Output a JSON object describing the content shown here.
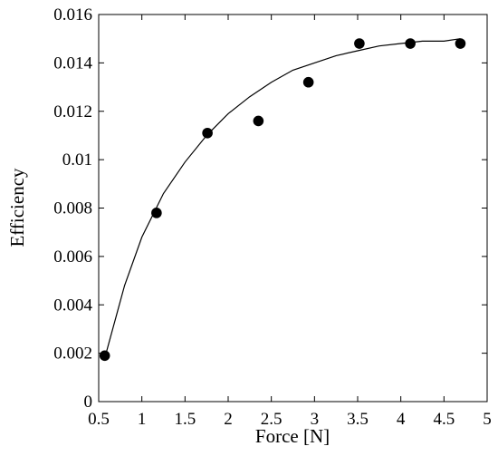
{
  "chart_data": {
    "type": "scatter",
    "title": "",
    "xlabel": "Force [N]",
    "ylabel": "Efficiency",
    "xlim": [
      0.5,
      5
    ],
    "ylim": [
      0,
      0.016
    ],
    "xticks": [
      "0.5",
      "1",
      "1.5",
      "2",
      "2.5",
      "3",
      "3.5",
      "4",
      "4.5",
      "5"
    ],
    "yticks": [
      "0",
      "0.002",
      "0.004",
      "0.006",
      "0.008",
      "0.01",
      "0.012",
      "0.014",
      "0.016"
    ],
    "grid": false,
    "series": [
      {
        "type": "scatter",
        "x": [
          0.57,
          1.17,
          1.76,
          2.35,
          2.93,
          3.52,
          4.11,
          4.69
        ],
        "y": [
          0.0019,
          0.0078,
          0.0111,
          0.0116,
          0.0132,
          0.0148,
          0.0148,
          0.0148
        ],
        "color": "#000000"
      },
      {
        "type": "line",
        "x": [
          0.57,
          0.8,
          1.0,
          1.25,
          1.5,
          1.75,
          2.0,
          2.25,
          2.5,
          2.75,
          3.0,
          3.25,
          3.5,
          3.75,
          4.0,
          4.25,
          4.5,
          4.69
        ],
        "y": [
          0.0018,
          0.0048,
          0.0068,
          0.0086,
          0.0099,
          0.011,
          0.0119,
          0.0126,
          0.0132,
          0.0137,
          0.014,
          0.0143,
          0.0145,
          0.0147,
          0.0148,
          0.0149,
          0.0149,
          0.015
        ],
        "color": "#000000"
      }
    ]
  }
}
